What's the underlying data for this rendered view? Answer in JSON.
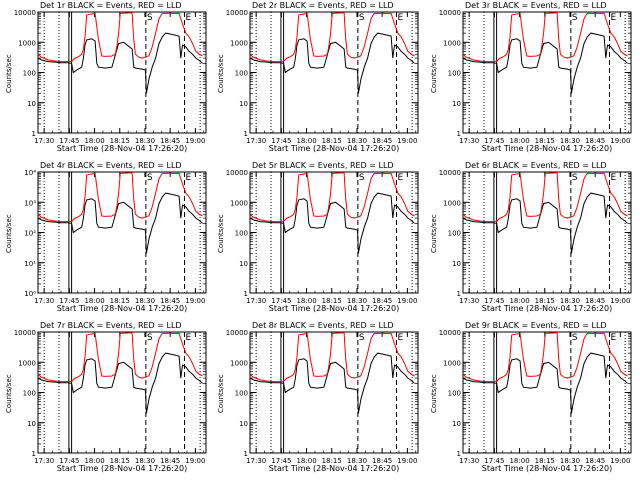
{
  "chart_data": {
    "type": "line",
    "title_template": "{det}   BLACK = Events, RED = LLD",
    "shared": {
      "xlabel": "Start Time (28-Nov-04 17:26:20)",
      "ylabel": "Counts/sec",
      "x_ticks": [
        "17:30",
        "17:45",
        "18:00",
        "18:15",
        "18:30",
        "18:45",
        "19:00"
      ],
      "x_tick_minutes": [
        3.67,
        18.67,
        33.67,
        48.67,
        63.67,
        78.67,
        93.67
      ],
      "xlim_minutes": [
        0,
        100
      ],
      "y_scale": "log",
      "ylim": [
        1,
        10000
      ],
      "y_ticks_plain": [
        "1",
        "10",
        "100",
        "1000",
        "10000"
      ],
      "y_ticks_exp": [
        "10⁰",
        "10¹",
        "10²",
        "10³",
        "10⁴"
      ],
      "markers": [
        "S",
        "E"
      ],
      "series": [
        {
          "name": "Events",
          "color": "#000000"
        },
        {
          "name": "LLD",
          "color": "#ff0000"
        }
      ]
    },
    "panels": [
      {
        "det": "Det 1r",
        "ytick_style": "plain"
      },
      {
        "det": "Det 2r",
        "ytick_style": "plain"
      },
      {
        "det": "Det 3r",
        "ytick_style": "plain"
      },
      {
        "det": "Det 4r",
        "ytick_style": "exp"
      },
      {
        "det": "Det 5r",
        "ytick_style": "plain"
      },
      {
        "det": "Det 6r",
        "ytick_style": "plain"
      },
      {
        "det": "Det 7r",
        "ytick_style": "plain"
      },
      {
        "det": "Det 8r",
        "ytick_style": "plain"
      },
      {
        "det": "Det 9r",
        "ytick_style": "plain"
      }
    ],
    "data": {
      "lld": [
        [
          0,
          400
        ],
        [
          2,
          320
        ],
        [
          6,
          260
        ],
        [
          10,
          240
        ],
        [
          14,
          230
        ],
        [
          18,
          230
        ],
        [
          20,
          235
        ],
        [
          22,
          300
        ],
        [
          24,
          330
        ],
        [
          26,
          400
        ],
        [
          27,
          600
        ],
        [
          28,
          1500
        ],
        [
          29,
          8000
        ],
        [
          34,
          9000
        ],
        [
          36,
          1200
        ],
        [
          38,
          350
        ],
        [
          40,
          340
        ],
        [
          44,
          350
        ],
        [
          46,
          400
        ],
        [
          47,
          800
        ],
        [
          48,
          2000
        ],
        [
          49,
          9000
        ],
        [
          56,
          9500
        ],
        [
          57,
          1200
        ],
        [
          58,
          400
        ],
        [
          60,
          320
        ],
        [
          62,
          300
        ],
        [
          64,
          320
        ],
        [
          66,
          360
        ],
        [
          68,
          700
        ],
        [
          70,
          2000
        ],
        [
          72,
          6000
        ],
        [
          74,
          9000
        ],
        [
          84,
          9000
        ],
        [
          86,
          4000
        ],
        [
          88,
          2000
        ],
        [
          90,
          1500
        ],
        [
          92,
          900
        ],
        [
          94,
          500
        ],
        [
          96,
          400
        ],
        [
          98,
          350
        ]
      ],
      "events": [
        [
          0,
          300
        ],
        [
          2,
          260
        ],
        [
          6,
          230
        ],
        [
          10,
          220
        ],
        [
          14,
          210
        ],
        [
          18,
          210
        ],
        [
          20,
          200
        ],
        [
          21,
          100
        ],
        [
          22,
          110
        ],
        [
          24,
          130
        ],
        [
          26,
          150
        ],
        [
          27,
          300
        ],
        [
          28,
          800
        ],
        [
          29,
          1200
        ],
        [
          32,
          1300
        ],
        [
          34,
          1100
        ],
        [
          35,
          200
        ],
        [
          36,
          150
        ],
        [
          40,
          140
        ],
        [
          44,
          150
        ],
        [
          47,
          600
        ],
        [
          48,
          900
        ],
        [
          51,
          1000
        ],
        [
          56,
          600
        ],
        [
          57,
          150
        ],
        [
          58,
          140
        ],
        [
          62,
          130
        ],
        [
          64,
          120
        ],
        [
          64.5,
          20
        ],
        [
          66,
          60
        ],
        [
          68,
          150
        ],
        [
          70,
          300
        ],
        [
          72,
          900
        ],
        [
          74,
          1500
        ],
        [
          76,
          2000
        ],
        [
          80,
          1800
        ],
        [
          84,
          1600
        ],
        [
          85,
          300
        ],
        [
          86,
          800
        ],
        [
          88,
          700
        ],
        [
          90,
          500
        ],
        [
          92,
          400
        ],
        [
          94,
          300
        ],
        [
          96,
          250
        ],
        [
          98,
          200
        ]
      ]
    }
  }
}
